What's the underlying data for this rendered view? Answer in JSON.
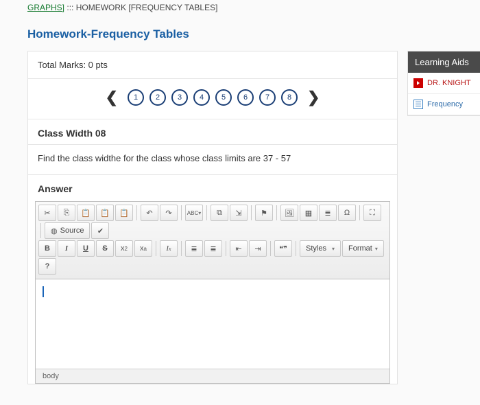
{
  "breadcrumb": {
    "link": "GRAPHS]",
    "sep": ":::",
    "current": "HOMEWORK [FREQUENCY TABLES]"
  },
  "page_title": "Homework-Frequency Tables",
  "marks_label": "Total Marks: 0 pts",
  "question_nav": {
    "prev": "❮",
    "next": "❯",
    "items": [
      "1",
      "2",
      "3",
      "4",
      "5",
      "6",
      "7",
      "8"
    ]
  },
  "question": {
    "heading": "Class Width 08",
    "prompt": "Find the class widthe for the class whose class limits are 37 - 57"
  },
  "answer_label": "Answer",
  "toolbar": {
    "cut": "✂",
    "copy": "⎘",
    "paste": "📋",
    "paste2": "📋",
    "paste3": "📋",
    "undo": "↶",
    "redo": "↷",
    "spell": "ABC",
    "link": "⧉",
    "unlink": "⇲",
    "flag": "⚑",
    "image": "🖼",
    "table": "▦",
    "hr": "≣",
    "omega": "Ω",
    "full": "⛶",
    "source": "Source",
    "sourceSym": "◍",
    "check": "✔",
    "bold": "B",
    "italic": "I",
    "underline": "U",
    "strike": "S",
    "sub": "x₂",
    "sup": "xª",
    "clear": "Iₓ",
    "ol": "≣",
    "ul": "≣",
    "out": "⇤",
    "in": "⇥",
    "quote": "❝❞",
    "styles": "Styles",
    "format": "Format",
    "help": "?"
  },
  "editor_footer": "body",
  "aids": {
    "title": "Learning Aids",
    "items": [
      {
        "kind": "yt",
        "label": "DR. KNIGHT"
      },
      {
        "kind": "doc",
        "label": "Frequency"
      }
    ]
  }
}
